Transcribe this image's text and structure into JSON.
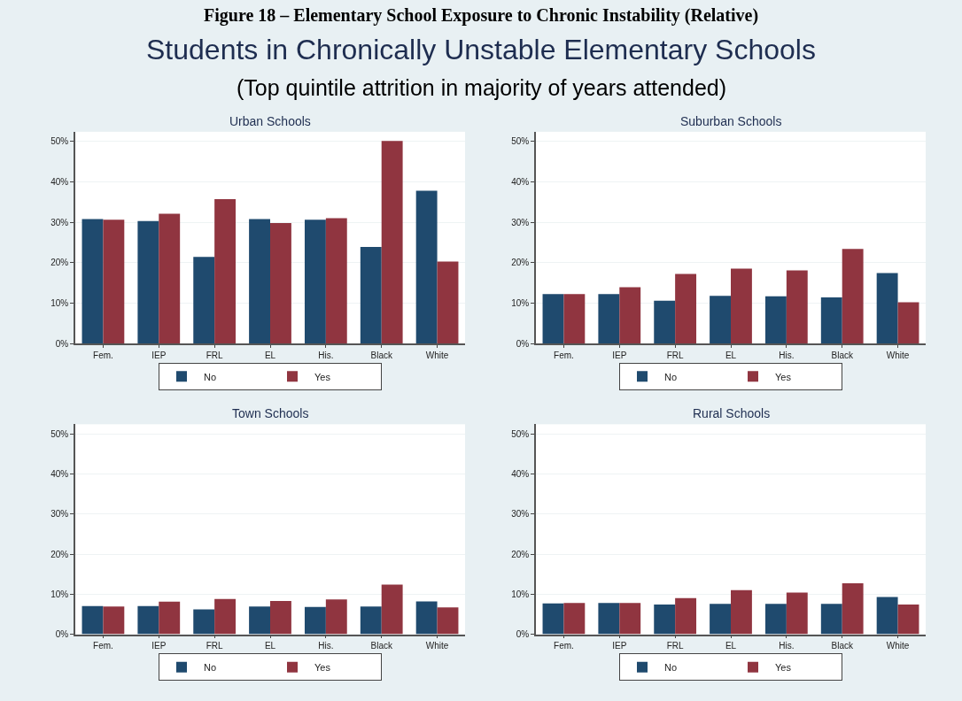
{
  "chart_data": [
    {
      "type": "bar",
      "title": "Urban Schools",
      "annotations": [
        "Figure 18 – Elementary School Exposure to Chronic Instability (Relative)",
        "Students in Chronically Unstable Elementary Schools",
        "(Top quintile attrition in majority of years attended)"
      ],
      "categories": [
        "Fem.",
        "IEP",
        "FRL",
        "EL",
        "His.",
        "Black",
        "White"
      ],
      "series": [
        {
          "name": "No",
          "color": "#1f4a6e",
          "values": [
            30.8,
            30.3,
            21.4,
            30.8,
            30.6,
            23.9,
            37.8
          ]
        },
        {
          "name": "Yes",
          "color": "#903540",
          "values": [
            30.6,
            32.1,
            35.7,
            29.8,
            31.0,
            50.1,
            20.3
          ]
        }
      ],
      "ylim": [
        0,
        52.4
      ],
      "yticks": [
        {
          "value": 0,
          "label": "0%"
        },
        {
          "value": 10,
          "label": "10%"
        },
        {
          "value": 20,
          "label": "20%"
        },
        {
          "value": 30,
          "label": "30%"
        },
        {
          "value": 40,
          "label": "40%"
        },
        {
          "value": 50,
          "label": "50%"
        }
      ],
      "grid": "y",
      "legend": "bottom"
    },
    {
      "type": "bar",
      "title": "Suburban Schools",
      "categories": [
        "Fem.",
        "IEP",
        "FRL",
        "EL",
        "His.",
        "Black",
        "White"
      ],
      "series": [
        {
          "name": "No",
          "color": "#1f4a6e",
          "values": [
            12.2,
            12.2,
            10.6,
            11.8,
            11.7,
            11.4,
            17.4
          ]
        },
        {
          "name": "Yes",
          "color": "#903540",
          "values": [
            12.2,
            13.9,
            17.2,
            18.5,
            18.1,
            23.4,
            10.2
          ]
        }
      ],
      "ylim": [
        0,
        52.4
      ],
      "yticks": [
        {
          "value": 0,
          "label": "0%"
        },
        {
          "value": 10,
          "label": "10%"
        },
        {
          "value": 20,
          "label": "20%"
        },
        {
          "value": 30,
          "label": "30%"
        },
        {
          "value": 40,
          "label": "40%"
        },
        {
          "value": 50,
          "label": "50%"
        }
      ],
      "grid": "y",
      "legend": "bottom"
    },
    {
      "type": "bar",
      "title": "Town Schools",
      "categories": [
        "Fem.",
        "IEP",
        "FRL",
        "EL",
        "His.",
        "Black",
        "White"
      ],
      "series": [
        {
          "name": "No",
          "color": "#1f4a6e",
          "values": [
            7.0,
            7.0,
            6.2,
            6.9,
            6.8,
            6.9,
            8.2
          ]
        },
        {
          "name": "Yes",
          "color": "#903540",
          "values": [
            6.9,
            8.1,
            8.8,
            8.3,
            8.7,
            12.4,
            6.7
          ]
        }
      ],
      "ylim": [
        0,
        52.4
      ],
      "yticks": [
        {
          "value": 0,
          "label": "0%"
        },
        {
          "value": 10,
          "label": "10%"
        },
        {
          "value": 20,
          "label": "20%"
        },
        {
          "value": 30,
          "label": "30%"
        },
        {
          "value": 40,
          "label": "40%"
        },
        {
          "value": 50,
          "label": "50%"
        }
      ],
      "grid": "y",
      "legend": "bottom"
    },
    {
      "type": "bar",
      "title": "Rural Schools",
      "categories": [
        "Fem.",
        "IEP",
        "FRL",
        "EL",
        "His.",
        "Black",
        "White"
      ],
      "series": [
        {
          "name": "No",
          "color": "#1f4a6e",
          "values": [
            7.7,
            7.8,
            7.4,
            7.6,
            7.6,
            7.6,
            9.3
          ]
        },
        {
          "name": "Yes",
          "color": "#903540",
          "values": [
            7.8,
            7.8,
            9.0,
            11.0,
            10.4,
            12.7,
            7.4
          ]
        }
      ],
      "ylim": [
        0,
        52.4
      ],
      "yticks": [
        {
          "value": 0,
          "label": "0%"
        },
        {
          "value": 10,
          "label": "10%"
        },
        {
          "value": 20,
          "label": "20%"
        },
        {
          "value": 30,
          "label": "30%"
        },
        {
          "value": 40,
          "label": "40%"
        },
        {
          "value": 50,
          "label": "50%"
        }
      ],
      "grid": "y",
      "legend": "bottom"
    }
  ]
}
